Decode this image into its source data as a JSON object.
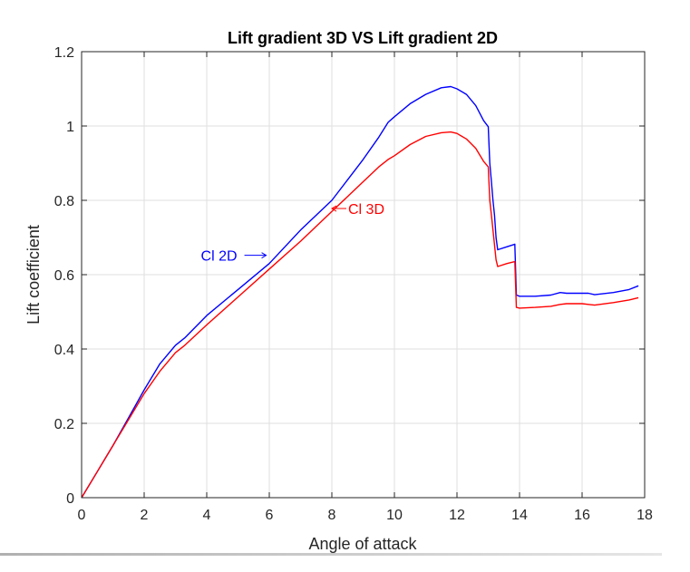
{
  "chart_data": {
    "type": "line",
    "title": "Lift gradient 3D VS Lift gradient 2D",
    "xlabel": "Angle of attack",
    "ylabel": "Lift coefficient",
    "xlim": [
      0,
      18
    ],
    "ylim": [
      0,
      1.2
    ],
    "xticks": [
      "0",
      "2",
      "4",
      "6",
      "8",
      "10",
      "12",
      "14",
      "16",
      "18"
    ],
    "yticks": [
      "0",
      "0.2",
      "0.4",
      "0.6",
      "0.8",
      "1",
      "1.2"
    ],
    "grid": true,
    "series": [
      {
        "color": "#0000ff",
        "x": [
          0,
          0.5,
          1,
          1.5,
          2,
          2.5,
          3,
          3.3,
          4,
          5,
          6,
          7,
          8,
          8.5,
          9,
          9.5,
          9.8,
          10,
          10.5,
          11,
          11.5,
          11.8,
          12,
          12.3,
          12.6,
          12.85,
          13,
          13.05,
          13.1,
          13.15,
          13.2,
          13.25,
          13.3,
          13.6,
          13.85,
          13.9,
          14,
          14.5,
          15,
          15.3,
          15.5,
          16,
          16.2,
          16.4,
          17,
          17.5,
          17.8
        ],
        "y": [
          0,
          0.07,
          0.14,
          0.215,
          0.29,
          0.36,
          0.41,
          0.43,
          0.49,
          0.56,
          0.63,
          0.72,
          0.8,
          0.855,
          0.91,
          0.97,
          1.01,
          1.025,
          1.06,
          1.085,
          1.103,
          1.106,
          1.1,
          1.085,
          1.055,
          1.015,
          0.998,
          0.9,
          0.85,
          0.8,
          0.76,
          0.7,
          0.667,
          0.675,
          0.682,
          0.545,
          0.542,
          0.542,
          0.545,
          0.552,
          0.55,
          0.55,
          0.55,
          0.546,
          0.552,
          0.56,
          0.57
        ],
        "annotation": "Cl 2D"
      },
      {
        "color": "#ff0000",
        "x": [
          0,
          0.5,
          1,
          1.5,
          2,
          2.5,
          3,
          3.3,
          4,
          5,
          6,
          7,
          8,
          8.5,
          9,
          9.5,
          9.8,
          10,
          10.5,
          11,
          11.5,
          11.8,
          12,
          12.3,
          12.6,
          12.85,
          13,
          13.05,
          13.1,
          13.15,
          13.2,
          13.25,
          13.3,
          13.6,
          13.85,
          13.9,
          14,
          14.5,
          15,
          15.3,
          15.5,
          16,
          16.2,
          16.4,
          17,
          17.5,
          17.8
        ],
        "y": [
          0,
          0.07,
          0.14,
          0.21,
          0.28,
          0.34,
          0.39,
          0.41,
          0.465,
          0.54,
          0.615,
          0.69,
          0.77,
          0.81,
          0.85,
          0.89,
          0.91,
          0.92,
          0.95,
          0.972,
          0.982,
          0.984,
          0.98,
          0.965,
          0.94,
          0.905,
          0.89,
          0.8,
          0.76,
          0.72,
          0.68,
          0.64,
          0.622,
          0.63,
          0.635,
          0.512,
          0.51,
          0.512,
          0.515,
          0.52,
          0.522,
          0.522,
          0.52,
          0.518,
          0.525,
          0.532,
          0.538
        ],
        "annotation": "Cl 3D"
      }
    ]
  }
}
